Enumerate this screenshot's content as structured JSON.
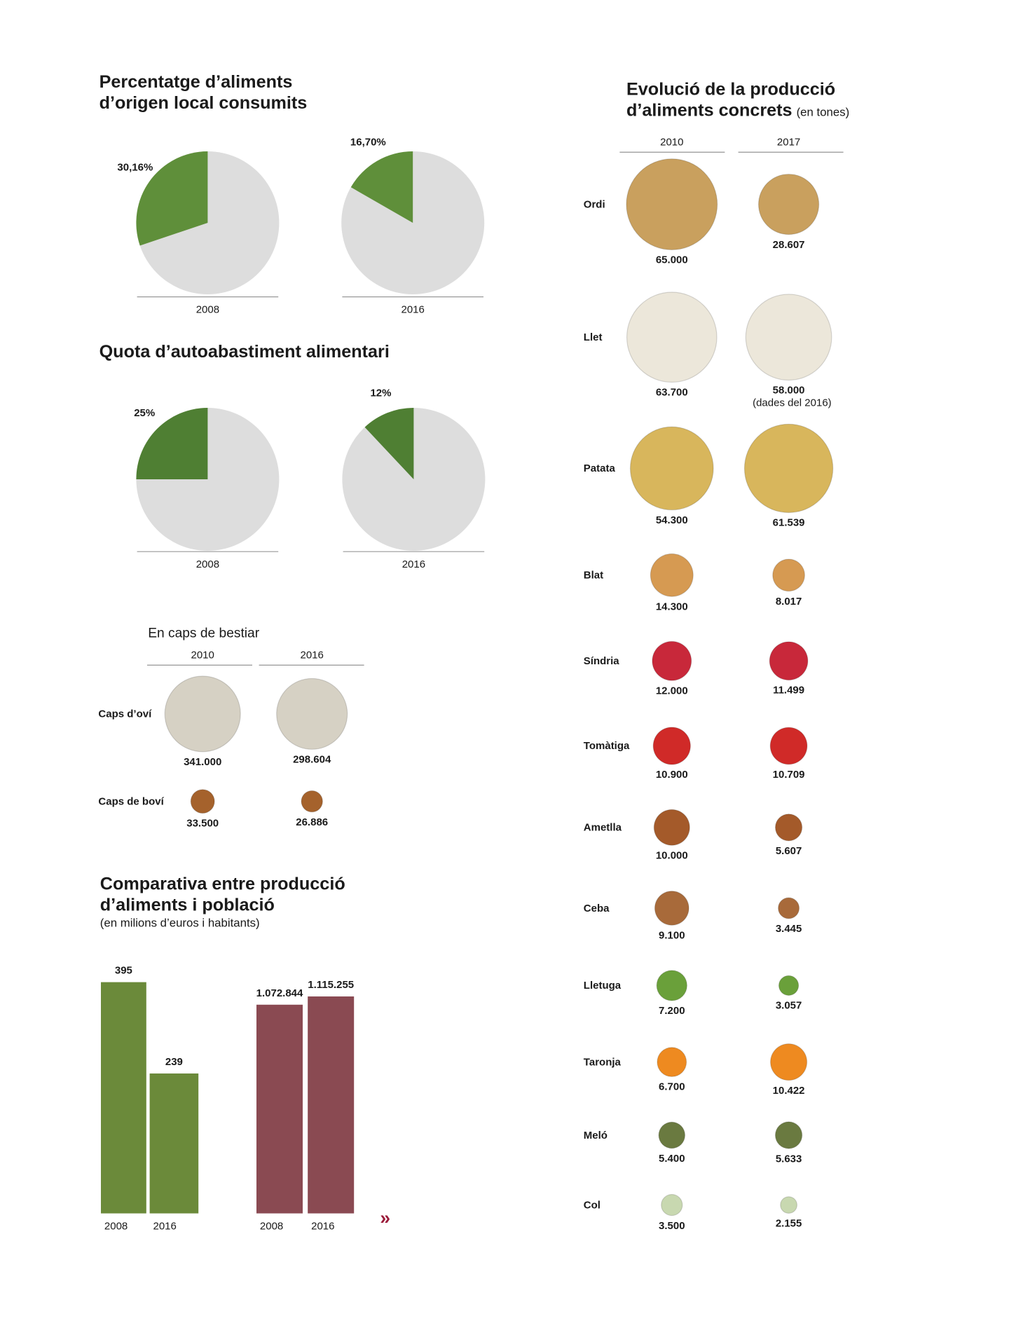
{
  "chart_data": [
    {
      "type": "pie",
      "title": [
        "Percentatge d’aliments",
        "d’origen local consumits"
      ],
      "categories": [
        "2008",
        "2016"
      ],
      "values": [
        30.16,
        16.7
      ],
      "value_labels": [
        "30,16%",
        "16,70%"
      ],
      "color": "#5f8f3a"
    },
    {
      "type": "pie",
      "title": [
        "Quota d’autoabastiment alimentari"
      ],
      "categories": [
        "2008",
        "2016"
      ],
      "values": [
        25,
        12
      ],
      "value_labels": [
        "25%",
        "12%"
      ],
      "color": "#4f7f33"
    },
    {
      "type": "bubble",
      "title": [
        "En caps de bestiar"
      ],
      "categories": [
        "Caps d’oví",
        "Caps de boví"
      ],
      "colors": [
        "#d6d1c4",
        "#a5622c"
      ],
      "series": [
        {
          "name": "2010",
          "values": [
            341000,
            33500
          ],
          "value_labels": [
            "341.000",
            "33.500"
          ]
        },
        {
          "name": "2016",
          "values": [
            298604,
            26886
          ],
          "value_labels": [
            "298.604",
            "26.886"
          ]
        }
      ]
    },
    {
      "type": "bubble",
      "title": [
        "Evolució de la producció",
        "d’aliments concrets"
      ],
      "subtitle": "(en tones)",
      "categories": [
        "Ordi",
        "Llet",
        "Patata",
        "Blat",
        "Síndria",
        "Tomàtiga",
        "Ametlla",
        "Ceba",
        "Lletuga",
        "Taronja",
        "Meló",
        "Col"
      ],
      "colors": [
        "#c9a05e",
        "#ece7da",
        "#d8b65c",
        "#d69a52",
        "#c8283a",
        "#d02a28",
        "#a45a2a",
        "#a86a3a",
        "#6aa03a",
        "#ee8a20",
        "#6a7a40",
        "#c8d8b0"
      ],
      "series": [
        {
          "name": "2010",
          "values": [
            65000,
            63700,
            54300,
            14300,
            12000,
            10900,
            10000,
            9100,
            7200,
            6700,
            5400,
            3500
          ],
          "value_labels": [
            "65.000",
            "63.700",
            "54.300",
            "14.300",
            "12.000",
            "10.900",
            "10.000",
            "9.100",
            "7.200",
            "6.700",
            "5.400",
            "3.500"
          ]
        },
        {
          "name": "2017",
          "values": [
            28607,
            58000,
            61539,
            8017,
            11499,
            10709,
            5607,
            3445,
            3057,
            10422,
            5633,
            2155
          ],
          "value_labels": [
            "28.607",
            "58.000",
            "61.539",
            "8.017",
            "11.499",
            "10.709",
            "5.607",
            "3.445",
            "3.057",
            "10.422",
            "5.633",
            "2.155"
          ]
        }
      ],
      "annotation": "(dades del 2016)"
    },
    {
      "type": "bar",
      "title": [
        "Comparativa entre producció",
        "d’aliments i població"
      ],
      "subtitle": "(en milions d’euros i habitants)",
      "categories": [
        "2008",
        "2016"
      ],
      "values": [
        395,
        239
      ],
      "color": "#6b8a3a"
    },
    {
      "type": "bar",
      "categories": [
        "2008",
        "2016"
      ],
      "values": [
        1072844,
        1115255
      ],
      "value_labels": [
        "1.072.844",
        "1.115.255"
      ],
      "color": "#8a4a52"
    }
  ]
}
